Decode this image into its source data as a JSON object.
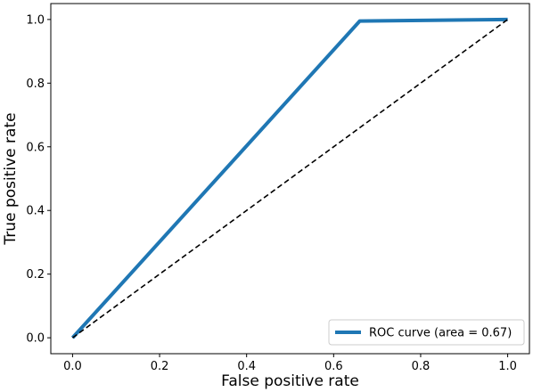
{
  "chart_data": {
    "type": "line",
    "title": "",
    "xlabel": "False positive rate",
    "ylabel": "True positive rate",
    "xlim": [
      -0.05,
      1.05
    ],
    "ylim": [
      -0.05,
      1.05
    ],
    "x_ticks": [
      "0.0",
      "0.2",
      "0.4",
      "0.6",
      "0.8",
      "1.0"
    ],
    "y_ticks": [
      "0.0",
      "0.2",
      "0.4",
      "0.6",
      "0.8",
      "1.0"
    ],
    "grid": false,
    "legend_position": "bottom-right",
    "series": [
      {
        "name": "ROC curve (area = 0.67)",
        "style": "solid",
        "color": "#1f77b4",
        "x": [
          0.0,
          0.66,
          1.0
        ],
        "y": [
          0.0,
          0.995,
          1.0
        ]
      },
      {
        "style": "dashed",
        "color": "#000000",
        "x": [
          0.0,
          1.0
        ],
        "y": [
          0.0,
          1.0
        ]
      }
    ]
  }
}
